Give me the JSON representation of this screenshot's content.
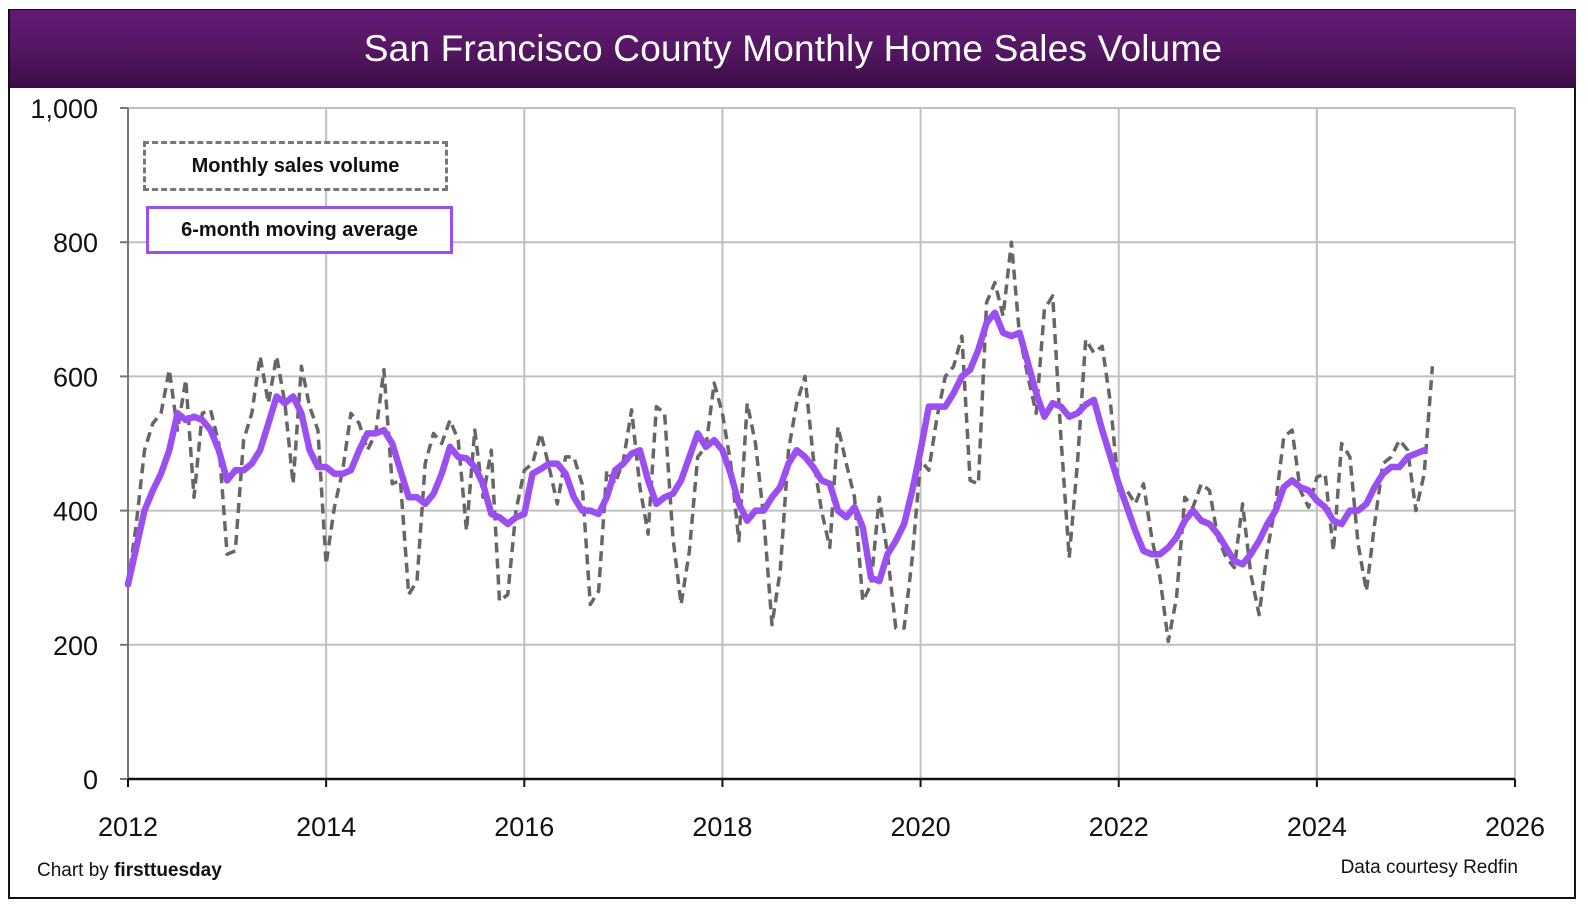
{
  "header": {
    "title": "San Francisco County Monthly Home Sales Volume"
  },
  "legend": {
    "monthly_label": "Monthly sales volume",
    "average_label": "6-month moving average"
  },
  "footer": {
    "credit_prefix": "Chart by ",
    "credit_brand": "firsttuesday",
    "source": "Data courtesy Redfin"
  },
  "colors": {
    "title_bar": "#561868",
    "monthly_line": "#666666",
    "average_line": "#9b4ff0",
    "grid": "#c0c0c0",
    "axis": "#111111"
  },
  "chart_data": {
    "type": "line",
    "title": "San Francisco County Monthly Home Sales Volume",
    "xlabel": "",
    "ylabel": "",
    "xlim": [
      2012,
      2026
    ],
    "ylim": [
      0,
      1000
    ],
    "yticks": [
      0,
      200,
      400,
      600,
      800,
      1000
    ],
    "ytick_labels": [
      "0",
      "200",
      "400",
      "600",
      "800",
      "1,000"
    ],
    "xticks": [
      2012,
      2014,
      2016,
      2018,
      2020,
      2022,
      2024,
      2026
    ],
    "xtick_labels": [
      "2012",
      "2014",
      "2016",
      "2018",
      "2020",
      "2022",
      "2024",
      "2026"
    ],
    "grid": true,
    "legend_position": "top-left",
    "start": "2012-01",
    "frequency": "monthly",
    "series": [
      {
        "name": "Monthly sales volume",
        "style": "dashed",
        "values": [
          290,
          380,
          490,
          530,
          545,
          610,
          520,
          595,
          420,
          545,
          550,
          500,
          335,
          340,
          505,
          545,
          630,
          560,
          630,
          560,
          440,
          615,
          555,
          520,
          320,
          405,
          460,
          545,
          530,
          490,
          515,
          610,
          440,
          445,
          275,
          295,
          470,
          515,
          500,
          535,
          505,
          370,
          520,
          420,
          490,
          265,
          275,
          400,
          460,
          470,
          515,
          465,
          410,
          480,
          480,
          440,
          260,
          280,
          460,
          440,
          475,
          550,
          435,
          365,
          555,
          545,
          360,
          260,
          340,
          480,
          495,
          590,
          545,
          470,
          355,
          560,
          500,
          390,
          230,
          310,
          490,
          560,
          600,
          480,
          400,
          345,
          525,
          470,
          420,
          265,
          290,
          420,
          335,
          225,
          225,
          330,
          475,
          460,
          540,
          600,
          615,
          660,
          445,
          440,
          710,
          740,
          690,
          800,
          660,
          600,
          545,
          700,
          720,
          510,
          330,
          470,
          655,
          635,
          645,
          560,
          430,
          430,
          410,
          440,
          360,
          300,
          205,
          270,
          420,
          405,
          440,
          430,
          360,
          330,
          315,
          410,
          305,
          245,
          340,
          410,
          510,
          520,
          430,
          405,
          450,
          455,
          340,
          500,
          480,
          350,
          280,
          380,
          470,
          480,
          505,
          490,
          400,
          455,
          615
        ]
      },
      {
        "name": "6-month moving average",
        "style": "solid",
        "values": [
          290,
          345,
          400,
          430,
          455,
          490,
          545,
          535,
          540,
          535,
          520,
          490,
          445,
          460,
          460,
          470,
          490,
          530,
          570,
          560,
          570,
          545,
          490,
          465,
          465,
          455,
          455,
          460,
          490,
          515,
          515,
          520,
          500,
          460,
          420,
          420,
          410,
          425,
          455,
          495,
          480,
          478,
          465,
          440,
          395,
          390,
          380,
          390,
          395,
          455,
          462,
          470,
          470,
          455,
          420,
          400,
          400,
          395,
          420,
          460,
          470,
          485,
          490,
          445,
          410,
          420,
          425,
          445,
          480,
          515,
          495,
          505,
          490,
          455,
          410,
          385,
          400,
          400,
          420,
          435,
          470,
          490,
          480,
          465,
          445,
          440,
          400,
          390,
          405,
          375,
          300,
          295,
          335,
          355,
          380,
          430,
          490,
          555,
          555,
          555,
          575,
          600,
          610,
          640,
          680,
          695,
          665,
          660,
          665,
          620,
          575,
          540,
          560,
          555,
          540,
          545,
          558,
          565,
          520,
          480,
          440,
          405,
          370,
          340,
          335,
          335,
          345,
          360,
          385,
          400,
          385,
          380,
          365,
          345,
          325,
          320,
          335,
          355,
          380,
          400,
          435,
          445,
          435,
          430,
          415,
          405,
          385,
          380,
          400,
          400,
          410,
          435,
          455,
          465,
          465,
          480,
          485,
          490
        ]
      }
    ]
  }
}
